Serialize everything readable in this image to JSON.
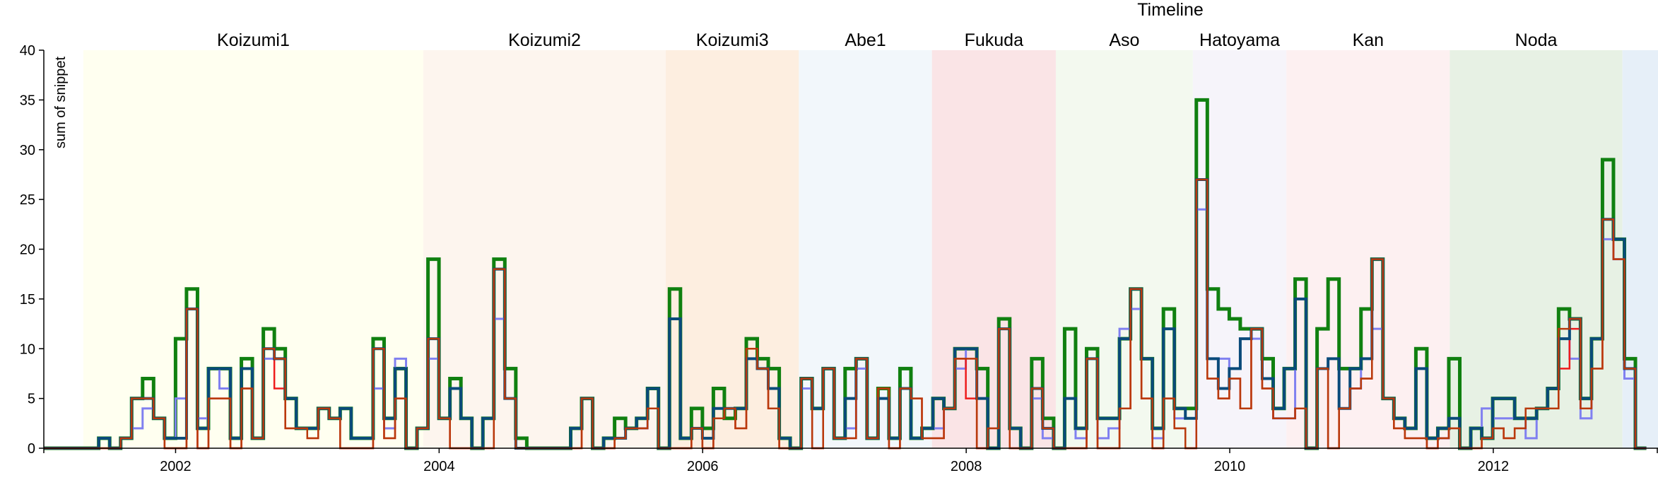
{
  "chart_data": {
    "type": "line",
    "title": "Timeline",
    "ylabel": "sum of snippet",
    "xlabel": "",
    "xlim": [
      2001.0,
      2013.25
    ],
    "ylim": [
      0,
      40
    ],
    "yticks": [
      0,
      5,
      10,
      15,
      20,
      25,
      30,
      35,
      40
    ],
    "xticks": [
      2002,
      2004,
      2006,
      2008,
      2010,
      2012
    ],
    "grid": false,
    "step_width": 0.0833,
    "eras": [
      {
        "name": "Koizumi1",
        "start": 2001.3,
        "end": 2003.88,
        "color": "#fffff0"
      },
      {
        "name": "Koizumi2",
        "start": 2003.88,
        "end": 2005.72,
        "color": "#fdf5ee"
      },
      {
        "name": "Koizumi3",
        "start": 2005.72,
        "end": 2006.73,
        "color": "#fdeee0"
      },
      {
        "name": "Abe1",
        "start": 2006.73,
        "end": 2007.74,
        "color": "#f2f7fb"
      },
      {
        "name": "Fukuda",
        "start": 2007.74,
        "end": 2008.68,
        "color": "#fae4e6"
      },
      {
        "name": "Aso",
        "start": 2008.68,
        "end": 2009.72,
        "color": "#f3f9ef"
      },
      {
        "name": "Hatoyama",
        "start": 2009.72,
        "end": 2010.43,
        "color": "#f6f4fa"
      },
      {
        "name": "Kan",
        "start": 2010.43,
        "end": 2011.67,
        "color": "#fdf0f1"
      },
      {
        "name": "Noda",
        "start": 2011.67,
        "end": 2012.98,
        "color": "#e7f1e4"
      },
      {
        "name": "",
        "start": 2012.98,
        "end": 2013.25,
        "color": "#e6eff8"
      }
    ],
    "x_start": 2001.0,
    "series": [
      {
        "color": "#108010",
        "values": [
          0,
          0,
          0,
          0,
          0,
          1,
          0,
          1,
          5,
          7,
          3,
          1,
          11,
          16,
          2,
          8,
          8,
          1,
          9,
          1,
          12,
          10,
          5,
          2,
          2,
          4,
          3,
          4,
          1,
          1,
          11,
          3,
          8,
          0,
          2,
          19,
          3,
          7,
          3,
          0,
          3,
          19,
          8,
          1,
          0,
          0,
          0,
          0,
          2,
          5,
          0,
          1,
          3,
          2,
          3,
          6,
          0,
          16,
          1,
          4,
          2,
          6,
          3,
          4,
          11,
          9,
          8,
          1,
          0,
          7,
          4,
          8,
          1,
          8,
          9,
          1,
          6,
          1,
          8,
          1,
          2,
          5,
          4,
          10,
          10,
          8,
          0,
          13,
          2,
          0,
          9,
          3,
          0,
          12,
          2,
          10,
          3,
          3,
          11,
          16,
          9,
          2,
          14,
          4,
          4,
          35,
          16,
          14,
          13,
          12,
          12,
          9,
          4,
          8,
          17,
          0,
          12,
          17,
          8,
          8,
          14,
          19,
          5,
          3,
          2,
          10,
          1,
          2,
          9,
          0,
          2,
          1,
          5,
          5,
          3,
          3,
          4,
          6,
          14,
          13,
          5,
          11,
          29,
          21,
          9,
          0
        ]
      },
      {
        "color": "#8080f0",
        "values": [
          0,
          0,
          0,
          0,
          0,
          1,
          0,
          1,
          2,
          4,
          3,
          1,
          5,
          14,
          3,
          8,
          6,
          1,
          8,
          1,
          9,
          9,
          5,
          2,
          2,
          4,
          3,
          4,
          1,
          1,
          6,
          2,
          9,
          0,
          2,
          9,
          3,
          6,
          3,
          0,
          3,
          13,
          5,
          0,
          0,
          0,
          0,
          0,
          2,
          5,
          0,
          1,
          1,
          2,
          2,
          6,
          0,
          13,
          1,
          2,
          1,
          4,
          4,
          4,
          9,
          8,
          6,
          1,
          0,
          6,
          4,
          8,
          1,
          2,
          8,
          1,
          5,
          1,
          6,
          1,
          2,
          2,
          4,
          8,
          10,
          5,
          0,
          12,
          2,
          0,
          5,
          1,
          0,
          5,
          1,
          9,
          1,
          2,
          12,
          14,
          9,
          1,
          12,
          3,
          3,
          24,
          9,
          9,
          8,
          11,
          11,
          7,
          3,
          3,
          15,
          0,
          8,
          9,
          4,
          6,
          9,
          12,
          5,
          3,
          2,
          8,
          1,
          1,
          3,
          0,
          2,
          4,
          3,
          3,
          3,
          1,
          4,
          6,
          11,
          9,
          3,
          11,
          21,
          19,
          7,
          0
        ]
      },
      {
        "color": "#ee1c1c",
        "values": [
          0,
          0,
          0,
          0,
          0,
          0,
          0,
          1,
          5,
          5,
          3,
          0,
          0,
          14,
          0,
          5,
          5,
          0,
          6,
          1,
          10,
          6,
          2,
          2,
          1,
          4,
          3,
          0,
          0,
          0,
          10,
          1,
          5,
          0,
          2,
          11,
          3,
          0,
          0,
          0,
          0,
          18,
          5,
          0,
          0,
          0,
          0,
          0,
          0,
          5,
          0,
          0,
          1,
          2,
          2,
          4,
          0,
          0,
          0,
          2,
          0,
          3,
          4,
          2,
          10,
          8,
          4,
          0,
          0,
          7,
          0,
          8,
          1,
          1,
          9,
          1,
          6,
          0,
          6,
          5,
          1,
          1,
          4,
          9,
          5,
          0,
          2,
          12,
          0,
          0,
          6,
          2,
          0,
          0,
          0,
          9,
          0,
          0,
          4,
          16,
          5,
          0,
          5,
          2,
          0,
          27,
          7,
          5,
          7,
          4,
          12,
          6,
          3,
          3,
          4,
          0,
          8,
          0,
          4,
          6,
          7,
          19,
          5,
          2,
          1,
          1,
          0,
          1,
          2,
          0,
          0,
          1,
          2,
          1,
          2,
          4,
          4,
          4,
          8,
          12,
          4,
          8,
          23,
          19,
          8,
          0
        ]
      },
      {
        "color": "#0a4a7a",
        "values": [
          0,
          0,
          0,
          0,
          0,
          1,
          0,
          1,
          5,
          5,
          3,
          1,
          1,
          14,
          2,
          8,
          8,
          1,
          8,
          1,
          10,
          9,
          5,
          2,
          2,
          4,
          3,
          4,
          1,
          1,
          10,
          3,
          8,
          0,
          2,
          11,
          3,
          6,
          3,
          0,
          3,
          18,
          5,
          0,
          0,
          0,
          0,
          0,
          2,
          5,
          0,
          1,
          1,
          2,
          3,
          6,
          0,
          13,
          1,
          2,
          1,
          4,
          4,
          4,
          9,
          8,
          6,
          1,
          0,
          7,
          4,
          8,
          1,
          5,
          9,
          1,
          5,
          1,
          6,
          1,
          2,
          5,
          4,
          10,
          10,
          5,
          0,
          12,
          2,
          0,
          6,
          2,
          0,
          5,
          2,
          9,
          3,
          3,
          11,
          16,
          9,
          2,
          12,
          4,
          3,
          27,
          9,
          6,
          8,
          11,
          12,
          7,
          4,
          8,
          15,
          0,
          8,
          9,
          4,
          8,
          9,
          19,
          5,
          3,
          2,
          8,
          1,
          2,
          3,
          0,
          2,
          1,
          5,
          5,
          3,
          3,
          4,
          6,
          11,
          13,
          5,
          11,
          23,
          21,
          8,
          0
        ]
      },
      {
        "color": "#b83a0c",
        "values": [
          0,
          0,
          0,
          0,
          0,
          0,
          0,
          1,
          5,
          5,
          3,
          0,
          0,
          14,
          0,
          5,
          5,
          0,
          6,
          1,
          10,
          9,
          2,
          2,
          1,
          4,
          3,
          0,
          0,
          0,
          10,
          1,
          5,
          0,
          2,
          11,
          3,
          0,
          0,
          0,
          0,
          18,
          5,
          0,
          0,
          0,
          0,
          0,
          0,
          5,
          0,
          0,
          1,
          2,
          2,
          4,
          0,
          0,
          0,
          2,
          0,
          3,
          4,
          2,
          10,
          8,
          4,
          0,
          0,
          7,
          0,
          8,
          1,
          1,
          9,
          1,
          6,
          0,
          6,
          5,
          1,
          1,
          4,
          9,
          9,
          0,
          2,
          12,
          0,
          0,
          6,
          2,
          0,
          0,
          0,
          9,
          0,
          0,
          4,
          16,
          5,
          0,
          5,
          2,
          0,
          27,
          7,
          5,
          7,
          4,
          12,
          6,
          3,
          3,
          4,
          0,
          8,
          0,
          4,
          6,
          7,
          19,
          5,
          2,
          1,
          1,
          0,
          1,
          2,
          0,
          0,
          1,
          2,
          1,
          2,
          4,
          4,
          4,
          12,
          13,
          4,
          8,
          23,
          19,
          8,
          0
        ]
      }
    ]
  }
}
